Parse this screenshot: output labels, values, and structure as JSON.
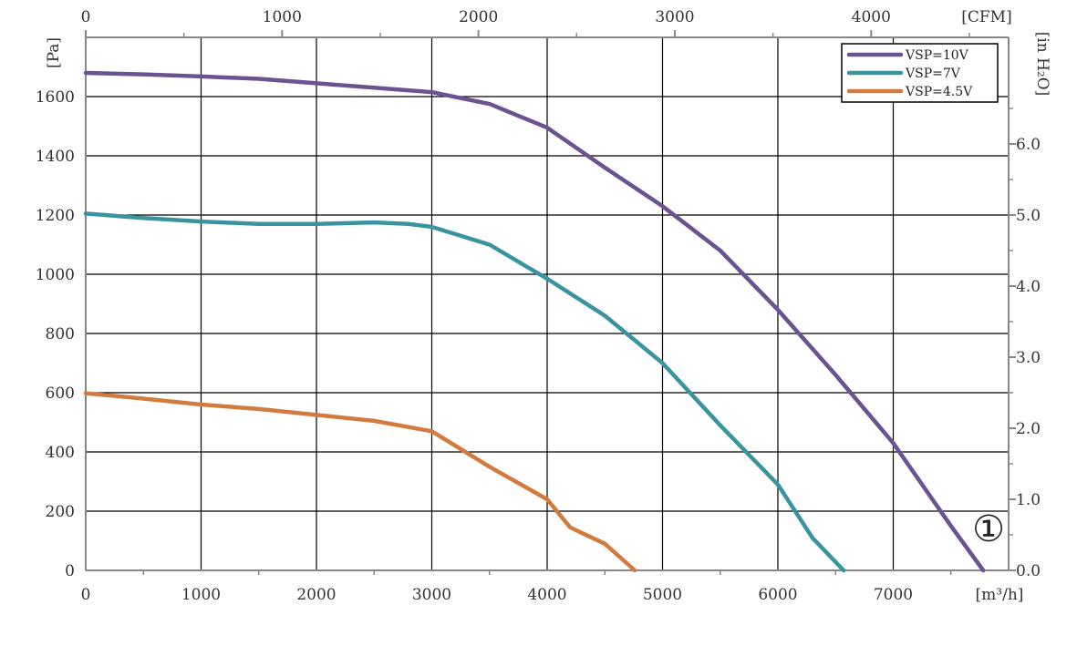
{
  "chart_data": {
    "type": "line",
    "xlabel": "[m³/h]",
    "ylabel": "[Pa]",
    "x2label": "[CFM]",
    "y2label": "[in H₂O]",
    "xlim": [
      0,
      8000
    ],
    "ylim": [
      0,
      1800
    ],
    "x2lim": [
      0,
      4700
    ],
    "y2lim": [
      0,
      7.5
    ],
    "grid": true,
    "legend_position": "top-right",
    "x_ticks": [
      "0",
      "1000",
      "2000",
      "3000",
      "4000",
      "5000",
      "6000",
      "7000"
    ],
    "y_ticks": [
      "0",
      "200",
      "400",
      "600",
      "800",
      "1000",
      "1200",
      "1400",
      "1600"
    ],
    "x2_ticks": [
      "0",
      "1000",
      "2000",
      "3000",
      "4000"
    ],
    "y2_ticks": [
      "0.0",
      "1.0",
      "2.0",
      "3.0",
      "4.0",
      "5.0",
      "6.0"
    ],
    "annotation": "①",
    "series": [
      {
        "name": "VSP=10V",
        "color": "#6a5390",
        "x": [
          0,
          500,
          1000,
          1500,
          2000,
          2500,
          3000,
          3500,
          4000,
          4500,
          5000,
          5500,
          6000,
          6500,
          7000,
          7500,
          7780
        ],
        "y": [
          1680,
          1675,
          1668,
          1660,
          1645,
          1630,
          1615,
          1575,
          1495,
          1360,
          1230,
          1080,
          880,
          660,
          430,
          150,
          0
        ]
      },
      {
        "name": "VSP=7V",
        "color": "#3a949f",
        "x": [
          0,
          500,
          1000,
          1500,
          2000,
          2500,
          2800,
          3000,
          3500,
          4000,
          4500,
          5000,
          5500,
          6000,
          6300,
          6570
        ],
        "y": [
          1205,
          1190,
          1178,
          1170,
          1170,
          1175,
          1170,
          1160,
          1100,
          985,
          860,
          700,
          490,
          290,
          110,
          0
        ]
      },
      {
        "name": "VSP=4.5V",
        "color": "#d27b3f",
        "x": [
          0,
          500,
          1000,
          1500,
          2000,
          2500,
          3000,
          3500,
          4000,
          4200,
          4500,
          4760
        ],
        "y": [
          598,
          580,
          560,
          545,
          525,
          505,
          470,
          350,
          240,
          145,
          90,
          0
        ]
      }
    ]
  }
}
